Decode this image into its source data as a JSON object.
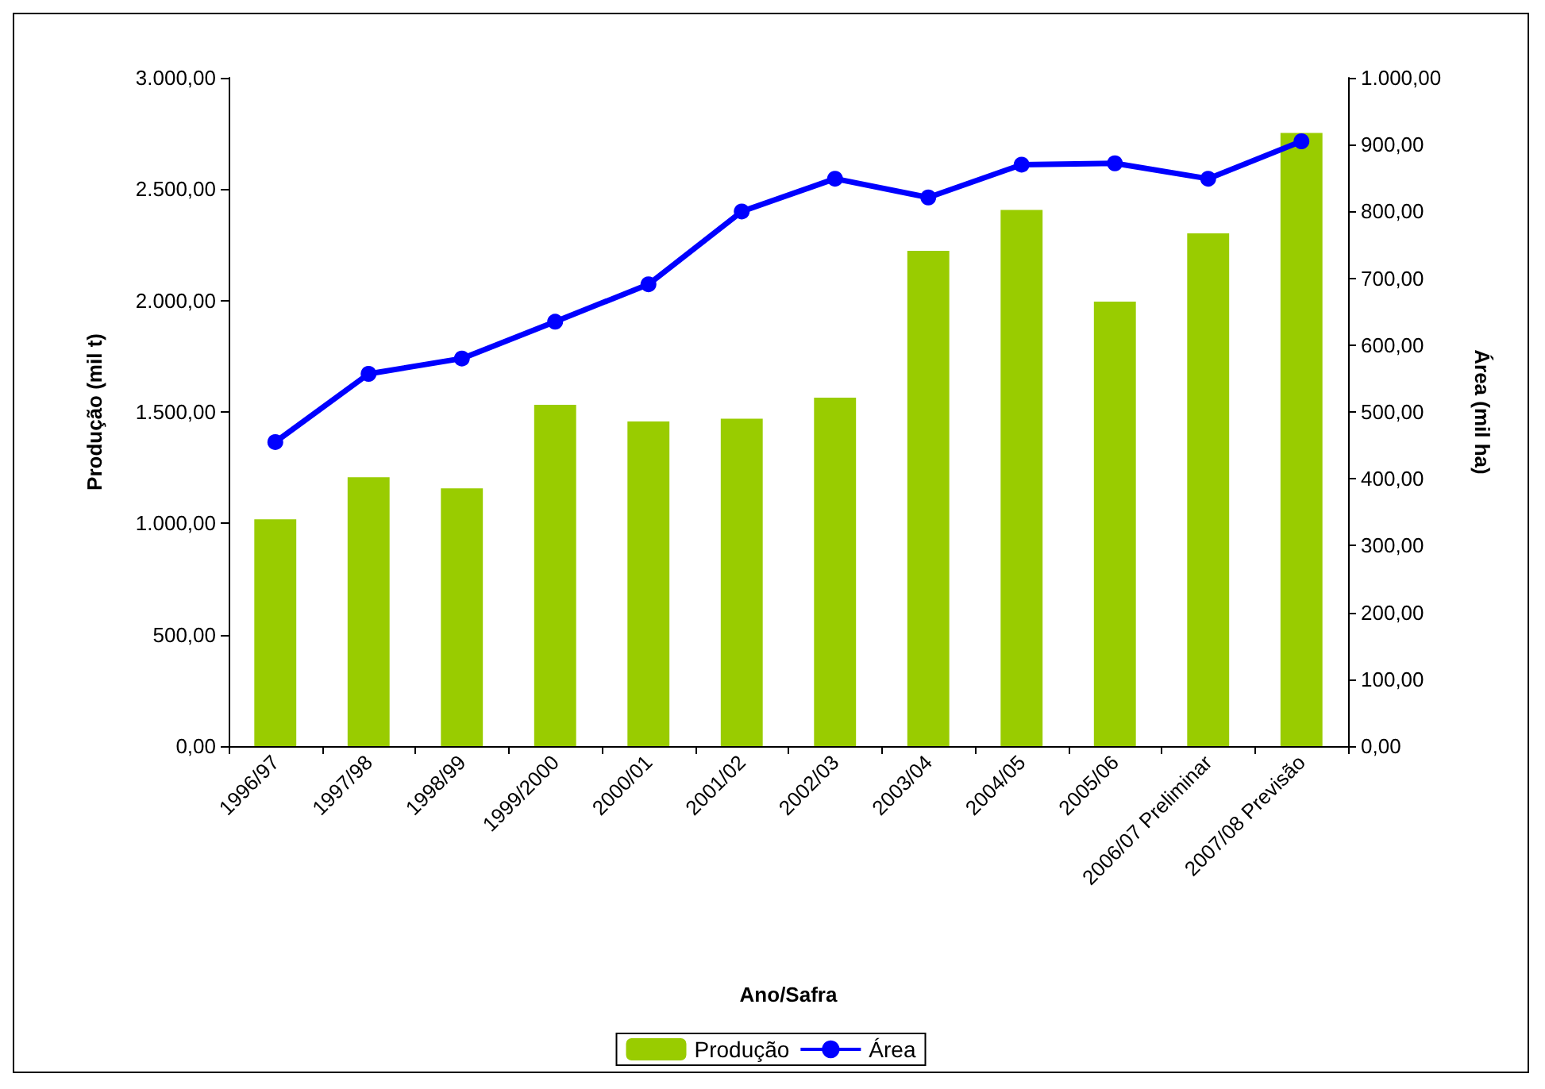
{
  "chart_data": {
    "type": "bar",
    "xlabel": "Ano/Safra",
    "ylabel": "Produção (mil t)",
    "y2label": "Área (mil ha)",
    "categories": [
      "1996/97",
      "1997/98",
      "1998/99",
      "1999/2000",
      "2000/01",
      "2001/02",
      "2002/03",
      "2003/04",
      "2004/05",
      "2005/06",
      "2006/07 Preliminar",
      "2007/08 Previsão"
    ],
    "series": [
      {
        "name": "Produção",
        "color": "#99cc00",
        "values": [
          1018,
          1207,
          1157,
          1532,
          1457,
          1470,
          1564,
          2223,
          2407,
          1995,
          2302,
          2752
        ]
      },
      {
        "name": "Área",
        "type": "line",
        "axis": "y2",
        "color": "#0000ff",
        "marker": "circle",
        "values": [
          455,
          557,
          580,
          635,
          691,
          800,
          849,
          821,
          870,
          872,
          849,
          905
        ]
      }
    ],
    "ylim": [
      0,
      3000
    ],
    "yticks": [
      {
        "value": 0,
        "label": "0,00"
      },
      {
        "value": 500,
        "label": "500,00"
      },
      {
        "value": 1000,
        "label": "1.000,00"
      },
      {
        "value": 1500,
        "label": "1.500,00"
      },
      {
        "value": 2000,
        "label": "2.000,00"
      },
      {
        "value": 2500,
        "label": "2.500,00"
      },
      {
        "value": 3000,
        "label": "3.000,00"
      }
    ],
    "y2lim": [
      0,
      1000
    ],
    "y2ticks": [
      {
        "value": 0,
        "label": "0,00"
      },
      {
        "value": 100,
        "label": "100,00"
      },
      {
        "value": 200,
        "label": "200,00"
      },
      {
        "value": 300,
        "label": "300,00"
      },
      {
        "value": 400,
        "label": "400,00"
      },
      {
        "value": 500,
        "label": "500,00"
      },
      {
        "value": 600,
        "label": "600,00"
      },
      {
        "value": 700,
        "label": "700,00"
      },
      {
        "value": 800,
        "label": "800,00"
      },
      {
        "value": 900,
        "label": "900,00"
      },
      {
        "value": 1000,
        "label": "1.000,00"
      }
    ],
    "grid": false,
    "legend": "bottom"
  }
}
